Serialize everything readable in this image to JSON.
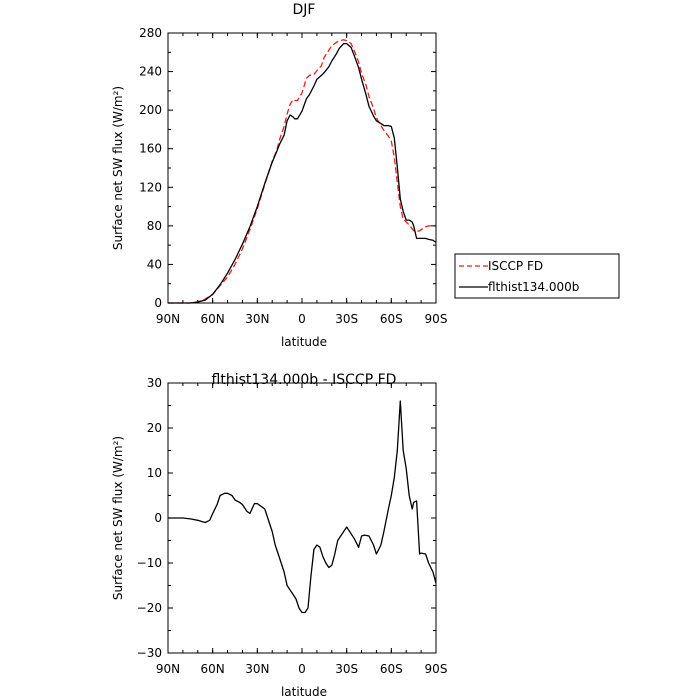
{
  "chart_data": [
    {
      "type": "line",
      "title": "DJF",
      "xlabel": "latitude",
      "ylabel": "Surface net SW flux (W/m²)",
      "xlim": [
        90,
        -90
      ],
      "ylim": [
        0,
        280
      ],
      "xticks": [
        90,
        60,
        30,
        0,
        -30,
        -60,
        -90
      ],
      "xtick_labels": [
        "90N",
        "60N",
        "30N",
        "0",
        "30S",
        "60S",
        "90S"
      ],
      "yticks": [
        0,
        40,
        80,
        120,
        160,
        200,
        240,
        280
      ],
      "ytick_labels": [
        "0",
        "40",
        "80",
        "120",
        "160",
        "200",
        "240",
        "280"
      ],
      "legend_position": "right",
      "series": [
        {
          "name": "ISCCP FD",
          "color": "#ee1c1c",
          "dash": "dashed",
          "x": [
            90,
            85,
            80,
            75,
            70,
            65,
            60,
            55,
            50,
            45,
            40,
            35,
            30,
            25,
            20,
            17,
            15,
            12,
            10,
            8,
            6,
            5,
            3,
            0,
            -3,
            -5,
            -8,
            -10,
            -13,
            -15,
            -18,
            -20,
            -23,
            -25,
            -28,
            -30,
            -33,
            -35,
            -38,
            -40,
            -43,
            -45,
            -48,
            -50,
            -53,
            -55,
            -58,
            -60,
            -62,
            -64,
            -66,
            -68,
            -70,
            -72,
            -74,
            -75,
            -77,
            -79,
            -80,
            -83,
            -85,
            -88,
            -90
          ],
          "y": [
            0,
            0,
            0,
            0,
            1,
            4,
            9,
            18,
            27,
            40,
            56,
            76,
            98,
            123,
            147,
            158,
            170,
            183,
            196,
            206,
            211,
            210,
            210,
            218,
            233,
            236,
            237,
            241,
            246,
            255,
            262,
            267,
            270,
            272,
            273,
            272,
            269,
            262,
            250,
            238,
            226,
            214,
            202,
            192,
            184,
            179,
            173,
            168,
            151,
            125,
            100,
            87,
            84,
            81,
            77,
            75,
            74,
            75,
            76,
            79,
            80,
            80,
            80
          ]
        },
        {
          "name": "flthist134.000b",
          "color": "#000000",
          "dash": "solid",
          "x": [
            90,
            85,
            80,
            75,
            70,
            65,
            60,
            55,
            50,
            45,
            40,
            35,
            30,
            25,
            20,
            17,
            15,
            12,
            10,
            8,
            6,
            5,
            3,
            0,
            -3,
            -5,
            -8,
            -10,
            -13,
            -15,
            -18,
            -20,
            -23,
            -25,
            -28,
            -30,
            -33,
            -35,
            -38,
            -40,
            -43,
            -45,
            -48,
            -50,
            -53,
            -55,
            -58,
            -60,
            -62,
            -64,
            -66,
            -68,
            -70,
            -72,
            -74,
            -75,
            -77,
            -79,
            -80,
            -83,
            -85,
            -88,
            -90
          ],
          "y": [
            0,
            0,
            0,
            0,
            1,
            3,
            9,
            19,
            31,
            45,
            61,
            79,
            100,
            124,
            146,
            157,
            165,
            174,
            189,
            195,
            193,
            191,
            191,
            199,
            212,
            216,
            225,
            232,
            236,
            239,
            245,
            251,
            258,
            264,
            269,
            269,
            265,
            257,
            244,
            232,
            216,
            204,
            194,
            189,
            186,
            184,
            184,
            183,
            171,
            141,
            108,
            95,
            86,
            86,
            84,
            80,
            67,
            67,
            67,
            67,
            66,
            65,
            63
          ]
        }
      ]
    },
    {
      "type": "line",
      "title": "flthist134.000b - ISCCP FD",
      "xlabel": "latitude",
      "ylabel": "Surface net SW flux (W/m²)",
      "xlim": [
        90,
        -90
      ],
      "ylim": [
        -30,
        30
      ],
      "xticks": [
        90,
        60,
        30,
        0,
        -30,
        -60,
        -90
      ],
      "xtick_labels": [
        "90N",
        "60N",
        "30N",
        "0",
        "30S",
        "60S",
        "90S"
      ],
      "yticks": [
        -30,
        -20,
        -10,
        0,
        10,
        20,
        30
      ],
      "ytick_labels": [
        "−30",
        "−20",
        "−10",
        "0",
        "10",
        "20",
        "30"
      ],
      "series": [
        {
          "color": "#000000",
          "dash": "solid",
          "x": [
            90,
            85,
            80,
            75,
            70,
            67,
            65,
            62,
            60,
            57,
            55,
            52,
            50,
            47,
            45,
            42,
            40,
            37,
            35,
            32,
            30,
            27,
            25,
            22,
            20,
            18,
            15,
            12,
            10,
            8,
            6,
            4,
            2,
            0,
            -2,
            -4,
            -6,
            -8,
            -10,
            -12,
            -14,
            -16,
            -18,
            -20,
            -22,
            -24,
            -26,
            -28,
            -30,
            -33,
            -35,
            -38,
            -40,
            -42,
            -45,
            -48,
            -50,
            -53,
            -55,
            -58,
            -60,
            -62,
            -64,
            -66,
            -68,
            -70,
            -72,
            -74,
            -75,
            -77,
            -79,
            -80,
            -83,
            -85,
            -88,
            -90
          ],
          "y": [
            0,
            0,
            0,
            -0.2,
            -0.5,
            -0.8,
            -1,
            -0.5,
            1,
            3,
            5,
            5.5,
            5.5,
            5,
            4,
            3.5,
            3,
            1.5,
            1,
            3.2,
            3.2,
            2.5,
            2,
            -1,
            -3,
            -6,
            -9,
            -12,
            -15,
            -16,
            -17,
            -18,
            -20,
            -21,
            -21,
            -20,
            -13,
            -7,
            -6,
            -6.5,
            -8.5,
            -10,
            -11,
            -10.5,
            -8,
            -5,
            -4,
            -3,
            -2,
            -3.5,
            -4.5,
            -6.5,
            -4,
            -3.8,
            -4,
            -6,
            -8,
            -6,
            -3,
            2,
            5,
            9,
            15,
            26,
            15,
            11,
            5,
            2,
            3.5,
            3.8,
            -8,
            -7.8,
            -8,
            -10,
            -12,
            -14.5
          ]
        }
      ]
    }
  ]
}
